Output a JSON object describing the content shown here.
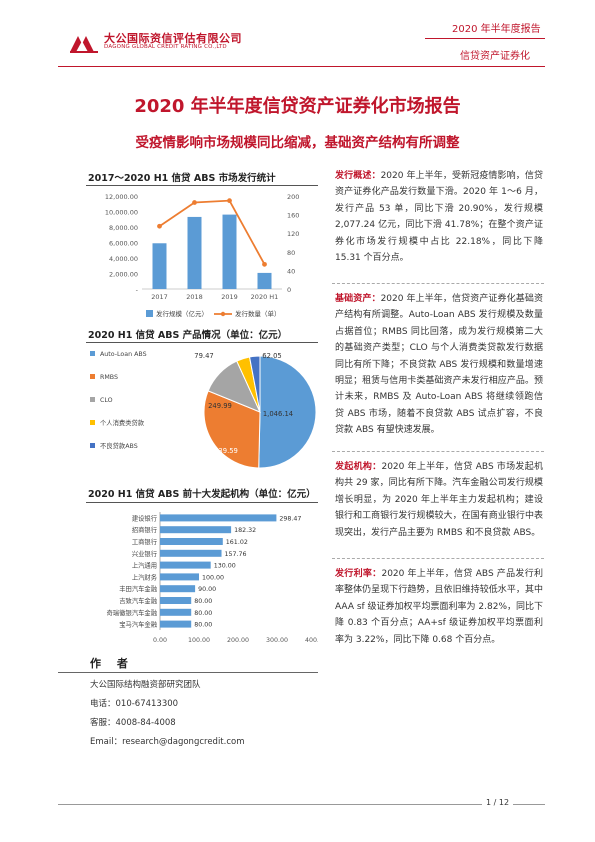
{
  "header": {
    "logo_cn": "大公国际资信评估有限公司",
    "logo_en": "DAGONG GLOBAL CREDIT RATING CO.,LTD",
    "report_label": "2020 年半年度报告",
    "category_label": "信贷资产证券化"
  },
  "title": "2020 年半年度信贷资产证券化市场报告",
  "subtitle": "受疫情影响市场规模同比缩减，基础资产结构有所调整",
  "colors": {
    "brand": "#c0162c",
    "bar": "#5b9bd5",
    "line": "#ed7d31"
  },
  "chart_data": [
    {
      "type": "bar",
      "title": "2017～2020 H1 信贷 ABS 市场发行统计",
      "categories": [
        "2017",
        "2018",
        "2019",
        "2020 H1"
      ],
      "series": [
        {
          "name": "发行规模（亿元）",
          "kind": "bar",
          "axis": "left",
          "values": [
            5900,
            9300,
            9600,
            2077
          ]
        },
        {
          "name": "发行数量（单）",
          "kind": "line",
          "axis": "right",
          "values": [
            135,
            186,
            190,
            53
          ]
        }
      ],
      "y_left_ticks": [
        "12,000.00",
        "10,000.00",
        "8,000.00",
        "6,000.00",
        "4,000.00",
        "2,000.00",
        "-"
      ],
      "y_left_range": [
        0,
        12000
      ],
      "y_right_ticks": [
        "200",
        "160",
        "120",
        "80",
        "40",
        "0"
      ],
      "y_right_range": [
        0,
        200
      ],
      "legend_position": "bottom",
      "grid": false
    },
    {
      "type": "pie",
      "title": "2020 H1 信贷 ABS 产品情况（单位：亿元）",
      "slices": [
        {
          "name": "Auto-Loan ABS",
          "value": 1046.14,
          "label": "1,046.14",
          "color": "#5b9bd5"
        },
        {
          "name": "RMBS",
          "value": 639.59,
          "label": "639.59",
          "color": "#ed7d31"
        },
        {
          "name": "CLO",
          "value": 249.99,
          "label": "249.99",
          "color": "#a5a5a5"
        },
        {
          "name": "个人消费类贷款",
          "value": 79.47,
          "label": "79.47",
          "color": "#ffc000"
        },
        {
          "name": "不良贷款ABS",
          "value": 62.05,
          "label": "62.05",
          "color": "#4472c4"
        }
      ],
      "legend_position": "left"
    },
    {
      "type": "bar",
      "orientation": "horizontal",
      "title": "2020 H1 信贷 ABS 前十大发起机构（单位：亿元）",
      "categories": [
        "建设银行",
        "招商银行",
        "工商银行",
        "兴业银行",
        "上汽通用",
        "上汽财务",
        "丰田汽车金融",
        "吉致汽车金融",
        "奇瑞徽银汽车金融",
        "宝马汽车金融"
      ],
      "values": [
        298.47,
        182.32,
        161.02,
        157.76,
        130.0,
        100.0,
        90.0,
        80.0,
        80.0,
        80.0
      ],
      "value_labels": [
        "298.47",
        "182.32",
        "161.02",
        "157.76",
        "130.00",
        "100.00",
        "90.00",
        "80.00",
        "80.00",
        "80.00"
      ],
      "x_ticks": [
        "0.00",
        "100.00",
        "200.00",
        "300.00",
        "400.00"
      ],
      "x_range": [
        0,
        400
      ],
      "grid": false
    }
  ],
  "sections": [
    {
      "keyword": "发行概述：",
      "text": "2020 年上半年，受新冠疫情影响，信贷资产证券化产品发行数量下滑。2020 年 1～6 月，发行产品 53 单，同比下滑 20.90%，发行规模 2,077.24 亿元，同比下滑 41.78%；在整个资产证券化市场发行规模中占比 22.18%，同比下降 15.31 个百分点。"
    },
    {
      "keyword": "基础资产：",
      "text": "2020 年上半年，信贷资产证券化基础资产结构有所调整。Auto-Loan ABS 发行规模及数量占据首位；RMBS 同比回落，成为发行规模第二大的基础资产类型；CLO 与个人消费类贷款发行数据同比有所下降；不良贷款 ABS 发行规模和数量增速明显；租赁与信用卡类基础资产未发行相应产品。预计未来，RMBS 及 Auto-Loan ABS 将继续领跑信贷 ABS 市场，随着不良贷款 ABS 试点扩容，不良贷款 ABS 有望快速发展。"
    },
    {
      "keyword": "发起机构：",
      "text": "2020 年上半年，信贷 ABS 市场发起机构共 29 家，同比有所下降。汽车金融公司发行规模增长明显，为 2020 年上半年主力发起机构；建设银行和工商银行发行规模较大，在国有商业银行中表现突出，发行产品主要为 RMBS 和不良贷款 ABS。"
    },
    {
      "keyword": "发行利率：",
      "text": "2020 年上半年，信贷 ABS 产品发行利率整体仍呈现下行趋势，且依旧维持较低水平，其中 AAA sf 级证券加权平均票面利率为 2.82%，同比下降 0.83 个百分点；AA+sf 级证券加权平均票面利率为 3.22%，同比下降 0.68 个百分点。"
    }
  ],
  "author": {
    "title": "作 者",
    "team": "大公国际结构融资部研究团队",
    "phone": "电话：010-67413300",
    "service": "客服：4008-84-4008",
    "email": "Email：research@dagongcredit.com"
  },
  "page": "1 / 12"
}
